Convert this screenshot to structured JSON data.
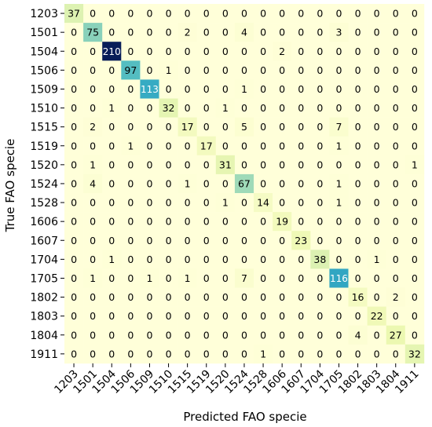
{
  "chart_data": {
    "type": "heatmap",
    "xlabel": "Predicted FAO specie",
    "ylabel": "True FAO specie",
    "categories": [
      "1203",
      "1501",
      "1504",
      "1506",
      "1509",
      "1510",
      "1515",
      "1519",
      "1520",
      "1524",
      "1528",
      "1606",
      "1607",
      "1704",
      "1705",
      "1802",
      "1803",
      "1804",
      "1911"
    ],
    "matrix": [
      [
        37,
        0,
        0,
        0,
        0,
        0,
        0,
        0,
        0,
        0,
        0,
        0,
        0,
        0,
        0,
        0,
        0,
        0,
        0
      ],
      [
        0,
        75,
        0,
        0,
        0,
        0,
        2,
        0,
        0,
        4,
        0,
        0,
        0,
        0,
        3,
        0,
        0,
        0,
        0
      ],
      [
        0,
        0,
        210,
        0,
        0,
        0,
        0,
        0,
        0,
        0,
        0,
        2,
        0,
        0,
        0,
        0,
        0,
        0,
        0
      ],
      [
        0,
        0,
        0,
        97,
        0,
        1,
        0,
        0,
        0,
        0,
        0,
        0,
        0,
        0,
        0,
        0,
        0,
        0,
        0
      ],
      [
        0,
        0,
        0,
        0,
        113,
        0,
        0,
        0,
        0,
        1,
        0,
        0,
        0,
        0,
        0,
        0,
        0,
        0,
        0
      ],
      [
        0,
        0,
        1,
        0,
        0,
        32,
        0,
        0,
        1,
        0,
        0,
        0,
        0,
        0,
        0,
        0,
        0,
        0,
        0
      ],
      [
        0,
        2,
        0,
        0,
        0,
        0,
        17,
        0,
        0,
        5,
        0,
        0,
        0,
        0,
        7,
        0,
        0,
        0,
        0
      ],
      [
        0,
        0,
        0,
        1,
        0,
        0,
        0,
        17,
        0,
        0,
        0,
        0,
        0,
        0,
        1,
        0,
        0,
        0,
        0
      ],
      [
        0,
        1,
        0,
        0,
        0,
        0,
        0,
        0,
        31,
        0,
        0,
        0,
        0,
        0,
        0,
        0,
        0,
        0,
        1
      ],
      [
        0,
        4,
        0,
        0,
        0,
        0,
        1,
        0,
        0,
        67,
        0,
        0,
        0,
        0,
        1,
        0,
        0,
        0,
        0
      ],
      [
        0,
        0,
        0,
        0,
        0,
        0,
        0,
        0,
        1,
        0,
        14,
        0,
        0,
        0,
        1,
        0,
        0,
        0,
        0
      ],
      [
        0,
        0,
        0,
        0,
        0,
        0,
        0,
        0,
        0,
        0,
        0,
        19,
        0,
        0,
        0,
        0,
        0,
        0,
        0
      ],
      [
        0,
        0,
        0,
        0,
        0,
        0,
        0,
        0,
        0,
        0,
        0,
        0,
        23,
        0,
        0,
        0,
        0,
        0,
        0
      ],
      [
        0,
        0,
        1,
        0,
        0,
        0,
        0,
        0,
        0,
        0,
        0,
        0,
        0,
        38,
        0,
        0,
        1,
        0,
        0
      ],
      [
        0,
        1,
        0,
        0,
        1,
        0,
        1,
        0,
        0,
        7,
        0,
        0,
        0,
        0,
        116,
        0,
        0,
        0,
        0
      ],
      [
        0,
        0,
        0,
        0,
        0,
        0,
        0,
        0,
        0,
        0,
        0,
        0,
        0,
        0,
        0,
        16,
        0,
        2,
        0
      ],
      [
        0,
        0,
        0,
        0,
        0,
        0,
        0,
        0,
        0,
        0,
        0,
        0,
        0,
        0,
        0,
        0,
        22,
        0,
        0
      ],
      [
        0,
        0,
        0,
        0,
        0,
        0,
        0,
        0,
        0,
        0,
        0,
        0,
        0,
        0,
        0,
        4,
        0,
        27,
        0
      ],
      [
        0,
        0,
        0,
        0,
        0,
        0,
        0,
        0,
        0,
        0,
        1,
        0,
        0,
        0,
        0,
        0,
        0,
        0,
        32
      ]
    ],
    "value_range": [
      0,
      210
    ],
    "colormap": "YlGnBu",
    "colors": {
      "low": "#ffffd9",
      "high": "#081d58",
      "text_dark": "#000000",
      "text_light": "#ffffff"
    }
  }
}
